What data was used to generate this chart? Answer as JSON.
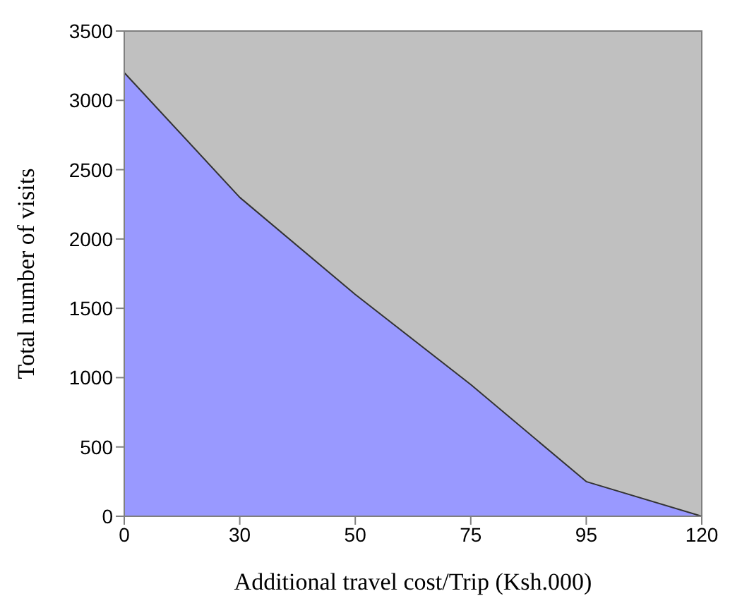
{
  "chart_data": {
    "type": "area",
    "xlabel": "Additional travel cost/Trip (Ksh.000)",
    "ylabel": "Total number of visits",
    "categories": [
      "0",
      "30",
      "50",
      "75",
      "95",
      "120"
    ],
    "series": [
      {
        "color": "#9999ff",
        "values": [
          3200,
          2300,
          1600,
          950,
          250,
          0
        ]
      }
    ],
    "ylim": [
      0,
      3500
    ],
    "yticks": [
      0,
      500,
      1000,
      1500,
      2000,
      2500,
      3000,
      3500
    ],
    "legend": false
  }
}
